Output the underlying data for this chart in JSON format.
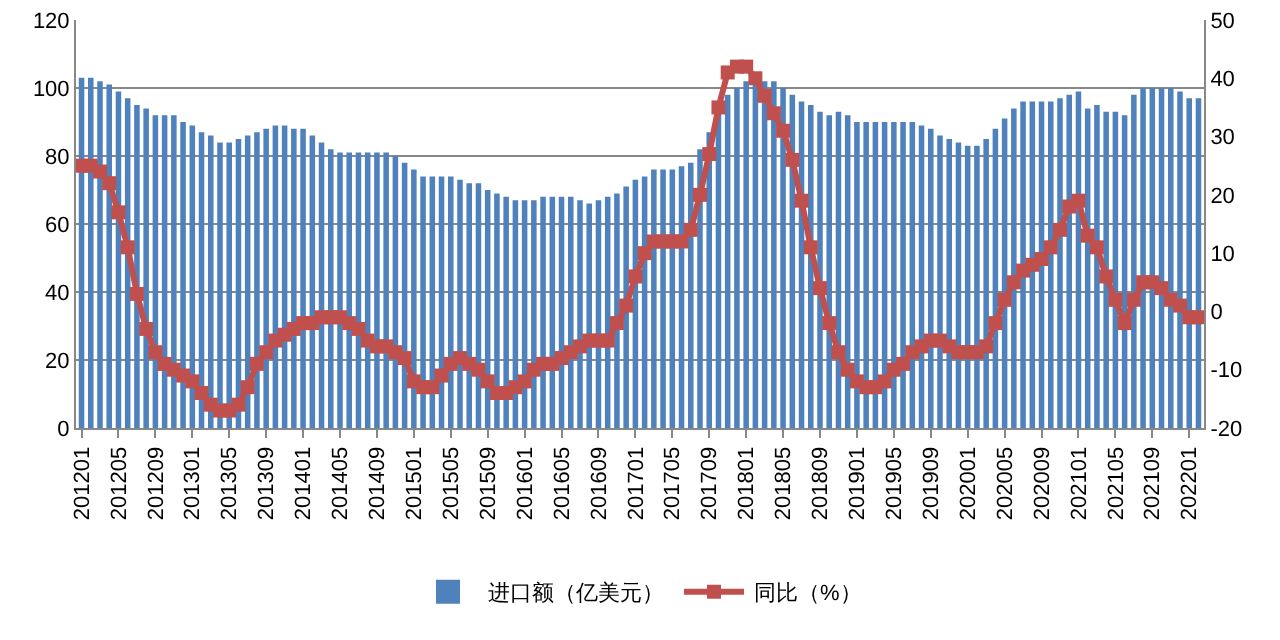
{
  "chart_data": {
    "type": "bar",
    "categories": [
      "201201",
      null,
      null,
      null,
      "201205",
      null,
      null,
      null,
      "201209",
      null,
      null,
      null,
      "201301",
      null,
      null,
      null,
      "201305",
      null,
      null,
      null,
      "201309",
      null,
      null,
      null,
      "201401",
      null,
      null,
      null,
      "201405",
      null,
      null,
      null,
      "201409",
      null,
      null,
      null,
      "201501",
      null,
      null,
      null,
      "201505",
      null,
      null,
      null,
      "201509",
      null,
      null,
      null,
      "201601",
      null,
      null,
      null,
      "201605",
      null,
      null,
      null,
      "201609",
      null,
      null,
      null,
      "201701",
      null,
      null,
      null,
      "201705",
      null,
      null,
      null,
      "201709",
      null,
      null,
      null,
      "201801",
      null,
      null,
      null,
      "201805",
      null,
      null,
      null,
      "201809",
      null,
      null,
      null,
      "201901",
      null,
      null,
      null,
      "201905",
      null,
      null,
      null,
      "201909",
      null,
      null,
      null,
      "202001",
      null,
      null,
      null,
      "202005",
      null,
      null,
      null,
      "202009",
      null,
      null,
      null,
      "202101",
      null,
      null,
      null,
      "202105",
      null,
      null,
      null,
      "202109",
      null,
      null,
      null,
      "202201",
      null
    ],
    "series": [
      {
        "name": "进口额（亿美元）",
        "color": "#4f81bd",
        "values": [
          103,
          103,
          102,
          101,
          99,
          97,
          95,
          94,
          92,
          92,
          92,
          90,
          89,
          87,
          86,
          84,
          84,
          85,
          86,
          87,
          88,
          89,
          89,
          88,
          88,
          86,
          84,
          82,
          81,
          81,
          81,
          81,
          81,
          81,
          80,
          78,
          76,
          74,
          74,
          74,
          74,
          73,
          72,
          72,
          70,
          69,
          68,
          67,
          67,
          67,
          68,
          68,
          68,
          68,
          67,
          66,
          67,
          68,
          69,
          71,
          73,
          74,
          76,
          76,
          76,
          77,
          78,
          82,
          87,
          94,
          98,
          100,
          102,
          102,
          102,
          102,
          100,
          98,
          96,
          95,
          93,
          92,
          93,
          92,
          90,
          90,
          90,
          90,
          90,
          90,
          90,
          89,
          88,
          86,
          85,
          84,
          83,
          83,
          85,
          88,
          91,
          94,
          96,
          96,
          96,
          96,
          97,
          98,
          99,
          94,
          95,
          93,
          93,
          92,
          98,
          100,
          100,
          100,
          100,
          99,
          97,
          97
        ]
      },
      {
        "name": "同比（%）",
        "type": "line",
        "axis": "y2",
        "color": "#c0504d",
        "marker": "square",
        "values": [
          25,
          25,
          24,
          22,
          17,
          11,
          3,
          -3,
          -7,
          -9,
          -10,
          -11,
          -12,
          -14,
          -16,
          -17,
          -17,
          -16,
          -13,
          -9,
          -7,
          -5,
          -4,
          -3,
          -2,
          -2,
          -1,
          -1,
          -1,
          -2,
          -3,
          -5,
          -6,
          -6,
          -7,
          -8,
          -12,
          -13,
          -13,
          -11,
          -9,
          -8,
          -9,
          -10,
          -12,
          -14,
          -14,
          -13,
          -12,
          -10,
          -9,
          -9,
          -8,
          -7,
          -6,
          -5,
          -5,
          -5,
          -2,
          1,
          6,
          10,
          12,
          12,
          12,
          12,
          14,
          20,
          27,
          35,
          41,
          42,
          42,
          40,
          37,
          34,
          31,
          26,
          19,
          11,
          4,
          -2,
          -7,
          -10,
          -12,
          -13,
          -13,
          -12,
          -10,
          -9,
          -7,
          -6,
          -5,
          -5,
          -6,
          -7,
          -7,
          -7,
          -6,
          -2,
          2,
          5,
          7,
          8,
          9,
          11,
          14,
          18,
          19,
          13,
          11,
          6,
          2,
          -2,
          2,
          5,
          5,
          4,
          2,
          1,
          -1,
          -1
        ]
      }
    ],
    "ylim": [
      0,
      120
    ],
    "yticks": [
      0,
      20,
      40,
      60,
      80,
      100,
      120
    ],
    "y2lim": [
      -20,
      50
    ],
    "y2ticks": [
      -20,
      -10,
      0,
      10,
      20,
      30,
      40,
      50
    ],
    "grid": "y",
    "legend": "bottom"
  }
}
